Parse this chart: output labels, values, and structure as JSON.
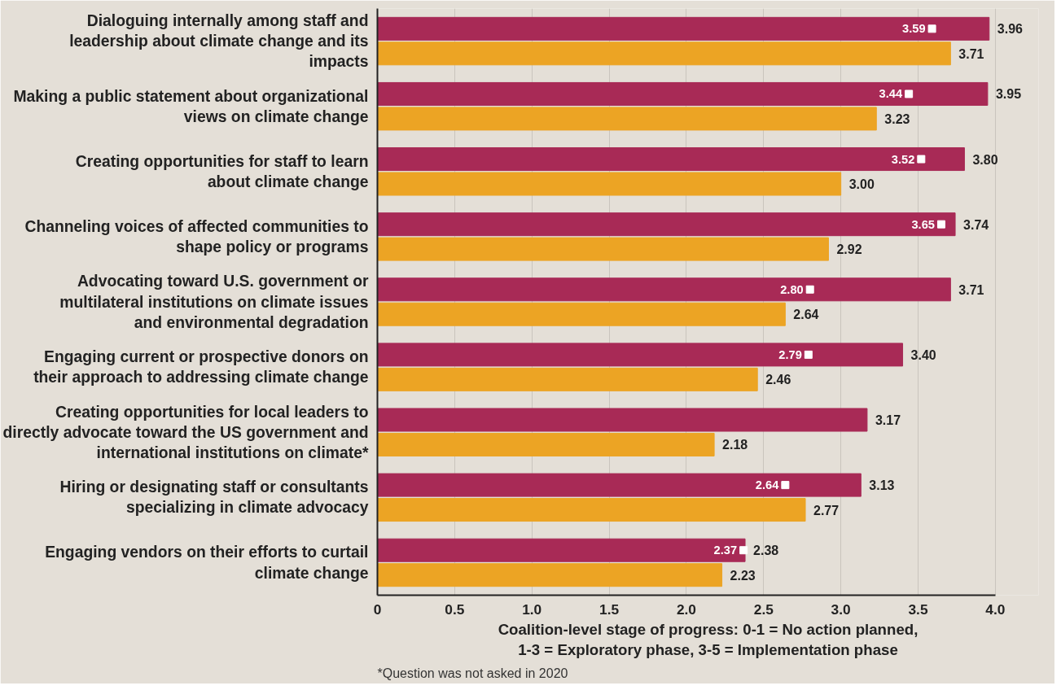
{
  "chart_data": {
    "type": "bar",
    "orientation": "horizontal",
    "categories": [
      "Dialoguing internally among staff and leadership about climate change and its impacts",
      "Making a public statement about organizational views on climate change",
      "Creating opportunities for staff to learn about climate change",
      "Channeling voices of affected communities to shape policy or programs",
      "Advocating toward U.S. government or multilateral institutions on climate issues and environmental degradation",
      "Engaging current or prospective donors on their approach to addressing climate change",
      "Creating opportunities for local leaders to directly advocate toward the US government and international institutions on climate*",
      "Hiring or designating staff or consultants specializing in climate advocacy",
      "Engaging vendors on their efforts to curtail climate change"
    ],
    "series": [
      {
        "color": "#a82a56",
        "values": [
          3.96,
          3.95,
          3.8,
          3.74,
          3.71,
          3.4,
          3.17,
          3.13,
          2.38
        ],
        "value_labels": [
          "3.96",
          "3.95",
          "3.80",
          "3.74",
          "3.71",
          "3.40",
          "3.17",
          "3.13",
          "2.38"
        ]
      },
      {
        "color": "#eca424",
        "values": [
          3.71,
          3.23,
          3.0,
          2.92,
          2.64,
          2.46,
          2.18,
          2.77,
          2.23
        ],
        "value_labels": [
          "3.71",
          "3.23",
          "3.00",
          "2.92",
          "2.64",
          "2.46",
          "2.18",
          "2.77",
          "2.23"
        ]
      },
      {
        "type": "scatter",
        "color": "#ffffff",
        "values": [
          3.59,
          3.44,
          3.52,
          3.65,
          2.8,
          2.79,
          null,
          2.64,
          2.37
        ],
        "value_labels": [
          "3.59",
          "3.44",
          "3.52",
          "3.65",
          "2.80",
          "2.79",
          null,
          "2.64",
          "2.37"
        ]
      }
    ],
    "xlim": [
      0,
      4
    ],
    "xticks": [
      0,
      0.5,
      {
        "value": 1,
        "label": "1.0"
      },
      1.5,
      {
        "value": 2,
        "label": "2.0"
      },
      2.5,
      {
        "value": 3,
        "label": "3.0"
      },
      3.5,
      {
        "value": 4,
        "label": "4.0"
      }
    ],
    "xlabel": "Coalition-level stage of progress: 0-1 = No action planned, 1-3 = Exploratory phase, 3-5 = Implementation phase",
    "grid": "x",
    "annotations": [
      "*Question was not asked in 2020"
    ]
  }
}
